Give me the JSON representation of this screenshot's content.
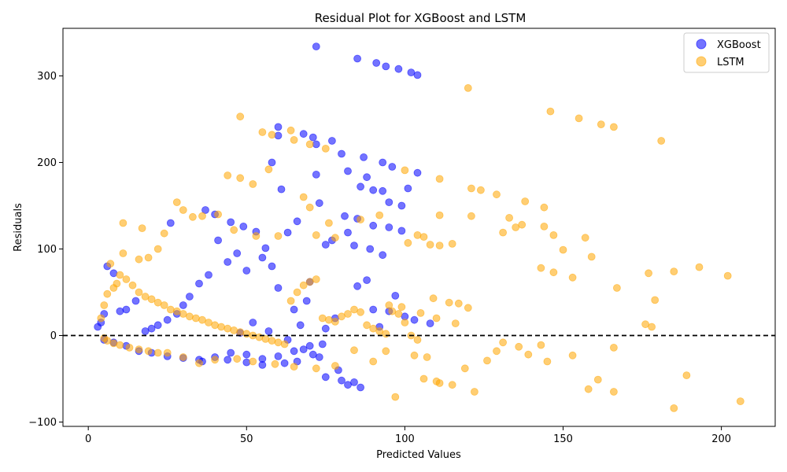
{
  "chart_data": {
    "type": "scatter",
    "title": "Residual Plot for XGBoost and LSTM",
    "xlabel": "Predicted Values",
    "ylabel": "Residuals",
    "xlim": [
      -8,
      217
    ],
    "ylim": [
      -105,
      355
    ],
    "xticks": [
      0,
      50,
      100,
      150,
      200
    ],
    "yticks": [
      -100,
      0,
      100,
      200,
      300
    ],
    "grid": false,
    "legend_position": "top-right",
    "reference_line": {
      "y": 0,
      "style": "dashed",
      "color": "#000000"
    },
    "series": [
      {
        "name": "XGBoost",
        "color": "#0000ff",
        "alpha": 0.55,
        "points": [
          [
            72,
            334
          ],
          [
            85,
            320
          ],
          [
            91,
            315
          ],
          [
            94,
            311
          ],
          [
            98,
            308
          ],
          [
            102,
            304
          ],
          [
            104,
            301
          ],
          [
            60,
            241
          ],
          [
            68,
            233
          ],
          [
            71,
            229
          ],
          [
            60,
            231
          ],
          [
            77,
            225
          ],
          [
            72,
            221
          ],
          [
            58,
            200
          ],
          [
            80,
            210
          ],
          [
            87,
            206
          ],
          [
            93,
            200
          ],
          [
            96,
            195
          ],
          [
            104,
            188
          ],
          [
            72,
            186
          ],
          [
            82,
            190
          ],
          [
            88,
            183
          ],
          [
            101,
            170
          ],
          [
            61,
            169
          ],
          [
            90,
            168
          ],
          [
            93,
            167
          ],
          [
            99,
            150
          ],
          [
            86,
            172
          ],
          [
            95,
            154
          ],
          [
            85,
            135
          ],
          [
            90,
            127
          ],
          [
            95,
            125
          ],
          [
            99,
            121
          ],
          [
            84,
            104
          ],
          [
            89,
            100
          ],
          [
            93,
            93
          ],
          [
            88,
            64
          ],
          [
            85,
            57
          ],
          [
            97,
            46
          ],
          [
            103,
            18
          ],
          [
            108,
            14
          ],
          [
            77,
            110
          ],
          [
            81,
            138
          ],
          [
            82,
            119
          ],
          [
            75,
            105
          ],
          [
            73,
            153
          ],
          [
            66,
            132
          ],
          [
            63,
            119
          ],
          [
            56,
            101
          ],
          [
            53,
            120
          ],
          [
            49,
            126
          ],
          [
            45,
            131
          ],
          [
            40,
            140
          ],
          [
            37,
            145
          ],
          [
            26,
            130
          ],
          [
            80,
            -52
          ],
          [
            84,
            -54
          ],
          [
            86,
            -60
          ],
          [
            82,
            -57
          ],
          [
            75,
            -48
          ],
          [
            79,
            -40
          ],
          [
            66,
            -30
          ],
          [
            62,
            -32
          ],
          [
            55,
            -34
          ],
          [
            50,
            -31
          ],
          [
            44,
            -28
          ],
          [
            36,
            -30
          ],
          [
            71,
            -22
          ],
          [
            73,
            -25
          ],
          [
            70,
            62
          ],
          [
            69,
            40
          ],
          [
            65,
            30
          ],
          [
            67,
            12
          ],
          [
            75,
            8
          ],
          [
            78,
            20
          ],
          [
            74,
            -10
          ],
          [
            68,
            -16
          ],
          [
            60,
            55
          ],
          [
            58,
            80
          ],
          [
            55,
            90
          ],
          [
            50,
            75
          ],
          [
            47,
            95
          ],
          [
            44,
            85
          ],
          [
            41,
            110
          ],
          [
            38,
            70
          ],
          [
            35,
            60
          ],
          [
            32,
            45
          ],
          [
            30,
            35
          ],
          [
            28,
            25
          ],
          [
            25,
            18
          ],
          [
            22,
            12
          ],
          [
            20,
            8
          ],
          [
            18,
            5
          ],
          [
            15,
            40
          ],
          [
            12,
            30
          ],
          [
            10,
            28
          ],
          [
            8,
            72
          ],
          [
            6,
            80
          ],
          [
            5,
            25
          ],
          [
            4,
            15
          ],
          [
            3,
            10
          ],
          [
            5,
            -5
          ],
          [
            8,
            -8
          ],
          [
            12,
            -12
          ],
          [
            16,
            -18
          ],
          [
            20,
            -20
          ],
          [
            25,
            -24
          ],
          [
            30,
            -26
          ],
          [
            35,
            -28
          ],
          [
            40,
            -25
          ],
          [
            45,
            -20
          ],
          [
            50,
            -22
          ],
          [
            55,
            -27
          ],
          [
            60,
            -24
          ],
          [
            65,
            -18
          ],
          [
            70,
            -12
          ],
          [
            90,
            30
          ],
          [
            92,
            10
          ],
          [
            95,
            28
          ],
          [
            100,
            22
          ],
          [
            63,
            -5
          ],
          [
            57,
            5
          ],
          [
            52,
            15
          ],
          [
            48,
            3
          ]
        ]
      },
      {
        "name": "LSTM",
        "color": "#ffa500",
        "alpha": 0.55,
        "points": [
          [
            120,
            286
          ],
          [
            146,
            259
          ],
          [
            155,
            251
          ],
          [
            162,
            244
          ],
          [
            166,
            241
          ],
          [
            181,
            225
          ],
          [
            48,
            253
          ],
          [
            55,
            235
          ],
          [
            58,
            232
          ],
          [
            64,
            237
          ],
          [
            65,
            226
          ],
          [
            70,
            221
          ],
          [
            75,
            216
          ],
          [
            57,
            192
          ],
          [
            68,
            160
          ],
          [
            70,
            148
          ],
          [
            44,
            185
          ],
          [
            48,
            182
          ],
          [
            52,
            175
          ],
          [
            100,
            191
          ],
          [
            111,
            181
          ],
          [
            121,
            170
          ],
          [
            124,
            168
          ],
          [
            129,
            163
          ],
          [
            138,
            155
          ],
          [
            144,
            148
          ],
          [
            133,
            136
          ],
          [
            135,
            125
          ],
          [
            137,
            128
          ],
          [
            144,
            126
          ],
          [
            147,
            116
          ],
          [
            150,
            99
          ],
          [
            157,
            113
          ],
          [
            159,
            91
          ],
          [
            131,
            119
          ],
          [
            121,
            138
          ],
          [
            111,
            139
          ],
          [
            106,
            114
          ],
          [
            104,
            116
          ],
          [
            101,
            107
          ],
          [
            108,
            105
          ],
          [
            111,
            104
          ],
          [
            115,
            106
          ],
          [
            92,
            139
          ],
          [
            86,
            134
          ],
          [
            76,
            130
          ],
          [
            78,
            113
          ],
          [
            72,
            116
          ],
          [
            60,
            115
          ],
          [
            53,
            115
          ],
          [
            46,
            122
          ],
          [
            41,
            140
          ],
          [
            36,
            138
          ],
          [
            33,
            137
          ],
          [
            28,
            154
          ],
          [
            30,
            145
          ],
          [
            24,
            118
          ],
          [
            17,
            124
          ],
          [
            11,
            130
          ],
          [
            11,
            95
          ],
          [
            7,
            83
          ],
          [
            16,
            88
          ],
          [
            19,
            90
          ],
          [
            22,
            100
          ],
          [
            143,
            78
          ],
          [
            147,
            73
          ],
          [
            153,
            67
          ],
          [
            167,
            55
          ],
          [
            177,
            72
          ],
          [
            185,
            74
          ],
          [
            193,
            79
          ],
          [
            202,
            69
          ],
          [
            179,
            41
          ],
          [
            176,
            13
          ],
          [
            178,
            10
          ],
          [
            114,
            38
          ],
          [
            117,
            37
          ],
          [
            109,
            43
          ],
          [
            120,
            32
          ],
          [
            116,
            14
          ],
          [
            110,
            20
          ],
          [
            105,
            26
          ],
          [
            99,
            33
          ],
          [
            95,
            35
          ],
          [
            206,
            -76
          ],
          [
            185,
            -84
          ],
          [
            189,
            -46
          ],
          [
            166,
            -65
          ],
          [
            158,
            -62
          ],
          [
            161,
            -51
          ],
          [
            166,
            -14
          ],
          [
            153,
            -23
          ],
          [
            145,
            -30
          ],
          [
            143,
            -11
          ],
          [
            139,
            -22
          ],
          [
            136,
            -13
          ],
          [
            131,
            -8
          ],
          [
            129,
            -18
          ],
          [
            126,
            -29
          ],
          [
            122,
            -65
          ],
          [
            119,
            -38
          ],
          [
            115,
            -57
          ],
          [
            111,
            -55
          ],
          [
            110,
            -53
          ],
          [
            106,
            -50
          ],
          [
            107,
            -25
          ],
          [
            103,
            -23
          ],
          [
            97,
            -71
          ],
          [
            94,
            -18
          ],
          [
            90,
            -30
          ],
          [
            84,
            -17
          ],
          [
            78,
            -35
          ],
          [
            72,
            -38
          ],
          [
            65,
            -36
          ],
          [
            59,
            -33
          ],
          [
            52,
            -30
          ],
          [
            47,
            -27
          ],
          [
            40,
            -28
          ],
          [
            35,
            -32
          ],
          [
            30,
            -25
          ],
          [
            25,
            -20
          ],
          [
            5,
            -3
          ],
          [
            6,
            -6
          ],
          [
            8,
            -9
          ],
          [
            10,
            -11
          ],
          [
            13,
            -14
          ],
          [
            16,
            -16
          ],
          [
            19,
            -18
          ],
          [
            22,
            -20
          ],
          [
            4,
            20
          ],
          [
            5,
            35
          ],
          [
            6,
            48
          ],
          [
            8,
            55
          ],
          [
            9,
            60
          ],
          [
            10,
            70
          ],
          [
            12,
            65
          ],
          [
            14,
            58
          ],
          [
            16,
            50
          ],
          [
            18,
            45
          ],
          [
            20,
            42
          ],
          [
            22,
            38
          ],
          [
            24,
            35
          ],
          [
            26,
            30
          ],
          [
            28,
            28
          ],
          [
            30,
            25
          ],
          [
            32,
            22
          ],
          [
            34,
            20
          ],
          [
            36,
            18
          ],
          [
            38,
            15
          ],
          [
            40,
            12
          ],
          [
            42,
            10
          ],
          [
            44,
            8
          ],
          [
            46,
            6
          ],
          [
            48,
            4
          ],
          [
            50,
            2
          ],
          [
            52,
            0
          ],
          [
            54,
            -2
          ],
          [
            56,
            -4
          ],
          [
            58,
            -6
          ],
          [
            60,
            -8
          ],
          [
            62,
            -10
          ],
          [
            64,
            40
          ],
          [
            66,
            50
          ],
          [
            68,
            58
          ],
          [
            70,
            62
          ],
          [
            72,
            65
          ],
          [
            74,
            20
          ],
          [
            76,
            18
          ],
          [
            78,
            16
          ],
          [
            80,
            22
          ],
          [
            82,
            25
          ],
          [
            84,
            30
          ],
          [
            86,
            27
          ],
          [
            88,
            12
          ],
          [
            90,
            8
          ],
          [
            92,
            5
          ],
          [
            94,
            2
          ],
          [
            96,
            28
          ],
          [
            98,
            25
          ],
          [
            100,
            15
          ],
          [
            102,
            0
          ],
          [
            104,
            -5
          ]
        ]
      }
    ]
  }
}
